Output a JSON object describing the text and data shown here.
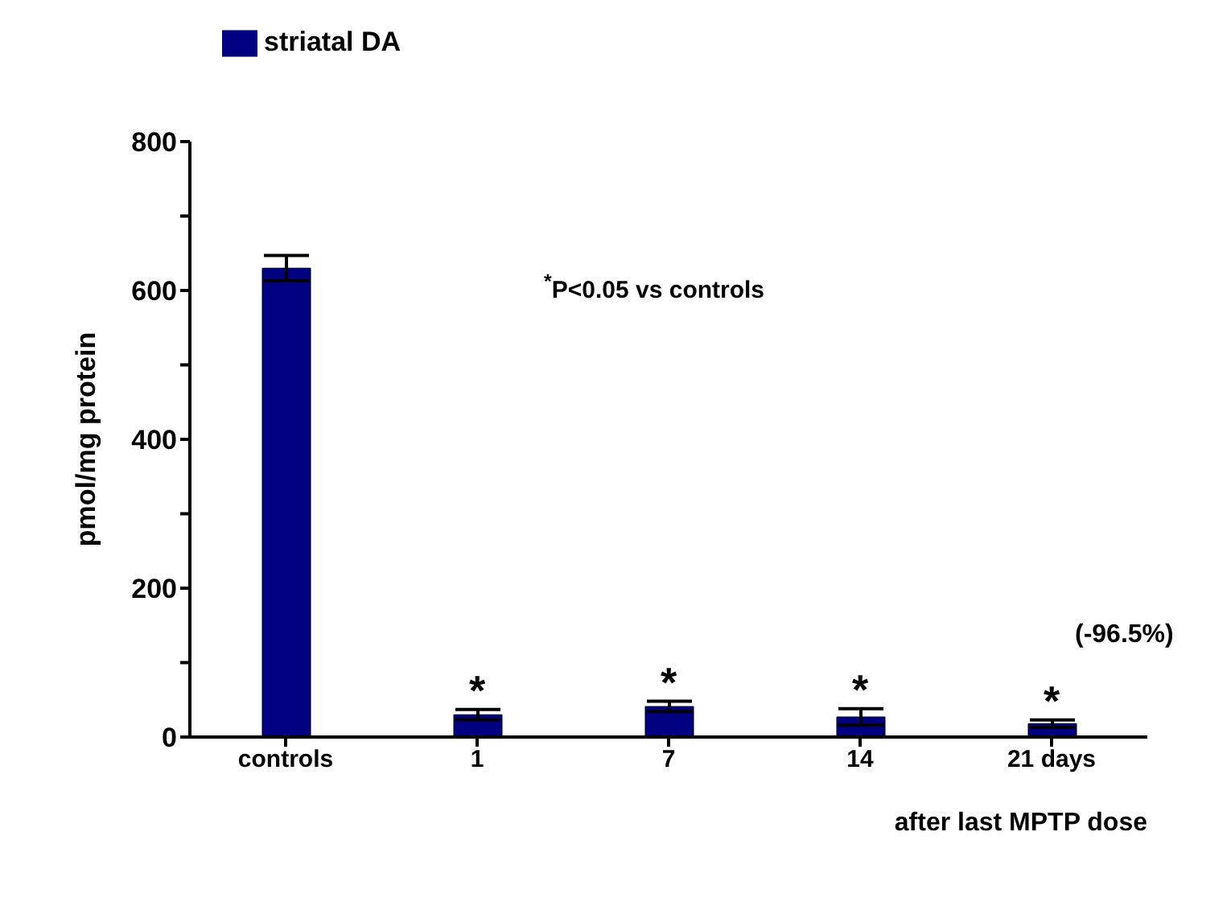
{
  "chart_data": {
    "type": "bar",
    "xlabel": "after last MPTP dose",
    "ylabel": "pmol/mg protein",
    "categories": [
      "controls",
      "1",
      "7",
      "14",
      "21 days"
    ],
    "series": [
      {
        "name": "striatal DA",
        "color": "#000080",
        "values": [
          630,
          30,
          41,
          27,
          18
        ],
        "errors": [
          17,
          7,
          7,
          11,
          5
        ]
      }
    ],
    "ylim": [
      0,
      800
    ],
    "yticks": [
      0,
      {
        "value": 100,
        "label": null
      },
      200,
      {
        "value": 300,
        "label": null
      },
      400,
      {
        "value": 500,
        "label": null
      },
      600,
      {
        "value": 700,
        "label": null
      },
      800
    ],
    "legend": "top left",
    "grid": false,
    "annotations": [
      {
        "text": "*",
        "x": "1",
        "y": 37
      },
      {
        "text": "*",
        "x": "7",
        "y": 48
      },
      {
        "text": "*",
        "x": "14",
        "y": 38
      },
      {
        "text": "*",
        "x": "21 days",
        "y": 23
      },
      "$^{*}$P<0.05 vs controls",
      "(-96.5%)"
    ]
  }
}
